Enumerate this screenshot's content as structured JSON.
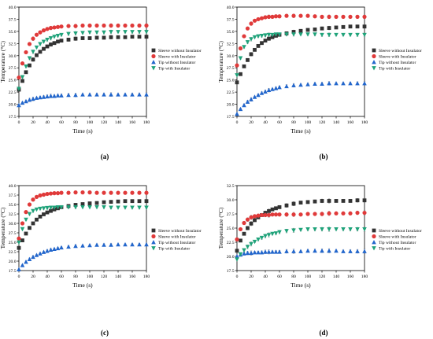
{
  "chart_data": [
    {
      "type": "scatter",
      "panel_label": "(a)",
      "xlabel": "Time (s)",
      "ylabel": "Temperature (°C)",
      "xlim": [
        0,
        180
      ],
      "ylim": [
        17.5,
        40.0
      ],
      "x_ticks": [
        0,
        20,
        40,
        60,
        80,
        100,
        120,
        140,
        160,
        180
      ],
      "y_ticks": [
        "17.5",
        "20.0",
        "22.5",
        "25.0",
        "27.5",
        "30.0",
        "32.5",
        "35.0",
        "37.5",
        "40.0"
      ],
      "grid": false,
      "legend_position": "right",
      "series": [
        {
          "name": "Sleeve without Insulator",
          "color": "#333333",
          "marker": "square",
          "x": [
            0,
            5,
            10,
            15,
            20,
            25,
            30,
            35,
            40,
            45,
            50,
            55,
            60,
            70,
            80,
            90,
            100,
            110,
            120,
            130,
            140,
            150,
            160,
            170,
            180
          ],
          "y": [
            23.0,
            24.8,
            26.6,
            28.0,
            29.2,
            30.1,
            30.8,
            31.4,
            31.9,
            32.3,
            32.6,
            32.9,
            33.1,
            33.3,
            33.5,
            33.6,
            33.6,
            33.7,
            33.7,
            33.8,
            33.8,
            33.8,
            33.9,
            33.9,
            33.9
          ]
        },
        {
          "name": "Sleeve with Insulator",
          "color": "#e03a3a",
          "marker": "circle",
          "x": [
            0,
            5,
            10,
            15,
            20,
            25,
            30,
            35,
            40,
            45,
            50,
            55,
            60,
            70,
            80,
            90,
            100,
            110,
            120,
            130,
            140,
            150,
            160,
            170,
            180
          ],
          "y": [
            25.5,
            28.4,
            30.7,
            32.4,
            33.5,
            34.3,
            34.8,
            35.2,
            35.5,
            35.7,
            35.8,
            35.9,
            36.0,
            36.1,
            36.1,
            36.2,
            36.2,
            36.2,
            36.2,
            36.2,
            36.2,
            36.2,
            36.2,
            36.2,
            36.2
          ]
        },
        {
          "name": "Tip without Insulator",
          "color": "#2266cc",
          "marker": "triangle-up",
          "x": [
            0,
            5,
            10,
            15,
            20,
            25,
            30,
            35,
            40,
            45,
            50,
            55,
            60,
            70,
            80,
            90,
            100,
            110,
            120,
            130,
            140,
            150,
            160,
            170,
            180
          ],
          "y": [
            19.8,
            20.3,
            20.6,
            20.9,
            21.1,
            21.3,
            21.4,
            21.5,
            21.6,
            21.7,
            21.7,
            21.8,
            21.8,
            21.9,
            21.9,
            22.0,
            22.0,
            22.0,
            22.0,
            22.0,
            22.0,
            22.0,
            22.0,
            22.0,
            22.0
          ]
        },
        {
          "name": "Tip with Insulator",
          "color": "#1fa37a",
          "marker": "triangle-down",
          "x": [
            0,
            5,
            10,
            15,
            20,
            25,
            30,
            35,
            40,
            45,
            50,
            55,
            60,
            70,
            80,
            90,
            100,
            110,
            120,
            130,
            140,
            150,
            160,
            170,
            180
          ],
          "y": [
            23.2,
            25.6,
            27.8,
            29.5,
            30.8,
            31.7,
            32.4,
            32.9,
            33.3,
            33.6,
            33.9,
            34.1,
            34.3,
            34.5,
            34.6,
            34.7,
            34.8,
            34.8,
            34.8,
            34.9,
            34.9,
            34.9,
            34.9,
            34.9,
            34.9
          ]
        }
      ]
    },
    {
      "type": "scatter",
      "panel_label": "(b)",
      "xlabel": "Time (s)",
      "ylabel": "Temperature (°C)",
      "xlim": [
        0,
        180
      ],
      "ylim": [
        17.5,
        40.0
      ],
      "x_ticks": [
        0,
        20,
        40,
        60,
        80,
        100,
        120,
        140,
        160,
        180
      ],
      "y_ticks": [
        "17.5",
        "20.0",
        "22.5",
        "25.0",
        "27.5",
        "30.0",
        "32.5",
        "35.0",
        "37.5",
        "40.0"
      ],
      "grid": false,
      "legend_position": "right",
      "series": [
        {
          "name": "Sleeve without Insulator",
          "color": "#333333",
          "marker": "square",
          "x": [
            0,
            5,
            10,
            15,
            20,
            25,
            30,
            35,
            40,
            45,
            50,
            55,
            60,
            70,
            80,
            90,
            100,
            110,
            120,
            130,
            140,
            150,
            160,
            170,
            180
          ],
          "y": [
            24.5,
            26.2,
            27.8,
            29.1,
            30.3,
            31.2,
            32.0,
            32.6,
            33.1,
            33.5,
            33.8,
            34.1,
            34.3,
            34.6,
            34.9,
            35.1,
            35.3,
            35.4,
            35.6,
            35.7,
            35.8,
            35.9,
            36.0,
            36.0,
            36.0
          ]
        },
        {
          "name": "Sleeve with Insulator",
          "color": "#e03a3a",
          "marker": "circle",
          "x": [
            0,
            5,
            10,
            15,
            20,
            25,
            30,
            35,
            40,
            45,
            50,
            55,
            60,
            70,
            80,
            90,
            100,
            110,
            120,
            130,
            140,
            150,
            160,
            170,
            180
          ],
          "y": [
            28.0,
            31.5,
            34.0,
            35.6,
            36.6,
            37.2,
            37.5,
            37.7,
            37.9,
            38.0,
            38.0,
            38.1,
            38.1,
            38.2,
            38.2,
            38.2,
            38.2,
            38.1,
            38.0,
            38.0,
            38.0,
            38.0,
            38.0,
            38.0,
            38.0
          ]
        },
        {
          "name": "Tip without Insulator",
          "color": "#2266cc",
          "marker": "triangle-up",
          "x": [
            0,
            5,
            10,
            15,
            20,
            25,
            30,
            35,
            40,
            45,
            50,
            55,
            60,
            70,
            80,
            90,
            100,
            110,
            120,
            130,
            140,
            150,
            160,
            170,
            180
          ],
          "y": [
            18.0,
            19.0,
            19.8,
            20.5,
            21.0,
            21.5,
            21.9,
            22.3,
            22.6,
            22.9,
            23.1,
            23.3,
            23.5,
            23.7,
            23.9,
            24.0,
            24.1,
            24.2,
            24.2,
            24.3,
            24.3,
            24.3,
            24.3,
            24.3,
            24.3
          ]
        },
        {
          "name": "Tip with Insulator",
          "color": "#1fa37a",
          "marker": "triangle-down",
          "x": [
            0,
            5,
            10,
            15,
            20,
            25,
            30,
            35,
            40,
            45,
            50,
            55,
            60,
            70,
            80,
            90,
            100,
            110,
            120,
            130,
            140,
            150,
            160,
            170,
            180
          ],
          "y": [
            26.0,
            29.5,
            31.8,
            32.8,
            33.4,
            33.8,
            34.0,
            34.1,
            34.2,
            34.3,
            34.3,
            34.4,
            34.4,
            34.4,
            34.4,
            34.4,
            34.4,
            34.4,
            34.3,
            34.3,
            34.3,
            34.3,
            34.3,
            34.3,
            34.3
          ]
        }
      ]
    },
    {
      "type": "scatter",
      "panel_label": "(c)",
      "xlabel": "Time (s)",
      "ylabel": "Temperature (°C)",
      "xlim": [
        0,
        180
      ],
      "ylim": [
        17.5,
        40.0
      ],
      "x_ticks": [
        0,
        20,
        40,
        60,
        80,
        100,
        120,
        140,
        160,
        180
      ],
      "y_ticks": [
        "17.5",
        "20.0",
        "22.5",
        "25.0",
        "27.5",
        "30.0",
        "32.5",
        "35.0",
        "37.5",
        "40.0"
      ],
      "grid": false,
      "legend_position": "right",
      "series": [
        {
          "name": "Sleeve without Insulator",
          "color": "#333333",
          "marker": "square",
          "x": [
            0,
            5,
            10,
            15,
            20,
            25,
            30,
            35,
            40,
            45,
            50,
            55,
            60,
            70,
            80,
            90,
            100,
            110,
            120,
            130,
            140,
            150,
            160,
            170,
            180
          ],
          "y": [
            23.5,
            25.5,
            27.3,
            28.8,
            30.0,
            31.0,
            31.8,
            32.4,
            32.9,
            33.3,
            33.7,
            34.0,
            34.3,
            34.6,
            34.9,
            35.1,
            35.3,
            35.4,
            35.6,
            35.7,
            35.8,
            35.9,
            35.9,
            35.9,
            35.9
          ]
        },
        {
          "name": "Sleeve with Insulator",
          "color": "#e03a3a",
          "marker": "circle",
          "x": [
            0,
            5,
            10,
            15,
            20,
            25,
            30,
            35,
            40,
            45,
            50,
            55,
            60,
            70,
            80,
            90,
            100,
            110,
            120,
            130,
            140,
            150,
            160,
            170,
            180
          ],
          "y": [
            26.0,
            30.0,
            33.0,
            35.0,
            36.3,
            37.0,
            37.4,
            37.6,
            37.8,
            37.9,
            38.0,
            38.0,
            38.1,
            38.1,
            38.2,
            38.2,
            38.2,
            38.1,
            38.1,
            38.1,
            38.1,
            38.1,
            38.1,
            38.1,
            38.1
          ]
        },
        {
          "name": "Tip without Insulator",
          "color": "#2266cc",
          "marker": "triangle-up",
          "x": [
            0,
            5,
            10,
            15,
            20,
            25,
            30,
            35,
            40,
            45,
            50,
            55,
            60,
            70,
            80,
            90,
            100,
            110,
            120,
            130,
            140,
            150,
            160,
            170,
            180
          ],
          "y": [
            17.8,
            18.9,
            19.8,
            20.5,
            21.1,
            21.6,
            22.0,
            22.4,
            22.7,
            23.0,
            23.2,
            23.4,
            23.6,
            23.8,
            24.0,
            24.1,
            24.2,
            24.3,
            24.3,
            24.3,
            24.4,
            24.4,
            24.4,
            24.4,
            24.4
          ]
        },
        {
          "name": "Tip with Insulator",
          "color": "#1fa37a",
          "marker": "triangle-down",
          "x": [
            0,
            5,
            10,
            15,
            20,
            25,
            30,
            35,
            40,
            45,
            50,
            55,
            60,
            70,
            80,
            90,
            100,
            110,
            120,
            130,
            140,
            150,
            160,
            170,
            180
          ],
          "y": [
            25.0,
            28.5,
            31.0,
            32.5,
            33.3,
            33.7,
            33.9,
            34.0,
            34.1,
            34.2,
            34.2,
            34.3,
            34.3,
            34.3,
            34.3,
            34.3,
            34.3,
            34.3,
            34.3,
            34.2,
            34.2,
            34.2,
            34.2,
            34.2,
            34.2
          ]
        }
      ]
    },
    {
      "type": "scatter",
      "panel_label": "(d)",
      "xlabel": "Time (s)",
      "ylabel": "Temperature (°C)",
      "xlim": [
        0,
        180
      ],
      "ylim": [
        17.5,
        32.5
      ],
      "x_ticks": [
        0,
        20,
        40,
        60,
        80,
        100,
        120,
        140,
        160,
        180
      ],
      "y_ticks": [
        "17.5",
        "20.0",
        "22.5",
        "25.0",
        "27.5",
        "30.0",
        "32.5"
      ],
      "grid": false,
      "legend_position": "right",
      "series": [
        {
          "name": "Sleeve without Insulator",
          "color": "#333333",
          "marker": "square",
          "x": [
            0,
            5,
            10,
            15,
            20,
            25,
            30,
            35,
            40,
            45,
            50,
            55,
            60,
            70,
            80,
            90,
            100,
            110,
            120,
            130,
            140,
            150,
            160,
            170,
            180
          ],
          "y": [
            21.0,
            22.8,
            24.0,
            25.0,
            25.8,
            26.4,
            26.9,
            27.3,
            27.7,
            28.0,
            28.3,
            28.5,
            28.7,
            29.0,
            29.3,
            29.5,
            29.6,
            29.7,
            29.8,
            29.8,
            29.8,
            29.8,
            29.8,
            29.9,
            29.9
          ]
        },
        {
          "name": "Sleeve with Insulator",
          "color": "#e03a3a",
          "marker": "circle",
          "x": [
            0,
            5,
            10,
            15,
            20,
            25,
            30,
            35,
            40,
            45,
            50,
            55,
            60,
            70,
            80,
            90,
            100,
            110,
            120,
            130,
            140,
            150,
            160,
            170,
            180
          ],
          "y": [
            23.0,
            24.8,
            25.9,
            26.5,
            26.9,
            27.1,
            27.2,
            27.3,
            27.3,
            27.3,
            27.4,
            27.4,
            27.4,
            27.4,
            27.4,
            27.4,
            27.5,
            27.5,
            27.5,
            27.6,
            27.6,
            27.6,
            27.6,
            27.7,
            27.7
          ]
        },
        {
          "name": "Tip without Insulator",
          "color": "#2266cc",
          "marker": "triangle-up",
          "x": [
            0,
            5,
            10,
            15,
            20,
            25,
            30,
            35,
            40,
            45,
            50,
            55,
            60,
            70,
            80,
            90,
            100,
            110,
            120,
            130,
            140,
            150,
            160,
            170,
            180
          ],
          "y": [
            20.0,
            20.3,
            20.5,
            20.6,
            20.6,
            20.7,
            20.7,
            20.7,
            20.8,
            20.8,
            20.8,
            20.8,
            20.8,
            20.9,
            20.9,
            20.9,
            21.0,
            21.0,
            21.0,
            21.0,
            21.0,
            20.9,
            20.9,
            20.9,
            20.9
          ]
        },
        {
          "name": "Tip with Insulator",
          "color": "#1fa37a",
          "marker": "triangle-down",
          "x": [
            0,
            5,
            10,
            15,
            20,
            25,
            30,
            35,
            40,
            45,
            50,
            55,
            60,
            70,
            80,
            90,
            100,
            110,
            120,
            130,
            140,
            150,
            160,
            170,
            180
          ],
          "y": [
            19.5,
            20.4,
            21.1,
            21.7,
            22.2,
            22.6,
            23.0,
            23.3,
            23.6,
            23.8,
            24.0,
            24.1,
            24.3,
            24.5,
            24.6,
            24.7,
            24.8,
            24.8,
            24.8,
            24.8,
            24.8,
            24.8,
            24.8,
            24.8,
            24.8
          ]
        }
      ]
    }
  ]
}
